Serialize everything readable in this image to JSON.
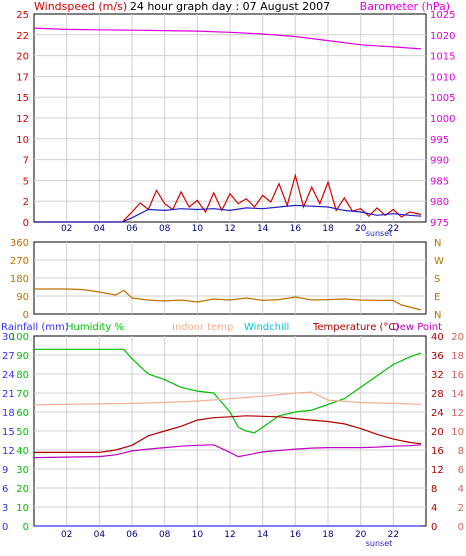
{
  "title": "24 hour graph day : 07 August 2007",
  "sunset_label": "sunset",
  "colors": {
    "windspeed": "#d40000",
    "wind_avg": "#2020c0",
    "barometer": "#e000e0",
    "wind_dir": "#c07000",
    "rainfall": "#3030ff",
    "humidity": "#00c000",
    "indoor": "#f0b090",
    "windchill": "#00c8d8",
    "temperature": "#b00000",
    "dewpoint": "#c000c0",
    "grid": "#d0d0d0",
    "frame": "#000000"
  },
  "chart_data": [
    {
      "type": "line",
      "panel": "top",
      "title": "24 hour graph day : 07 August 2007",
      "left_axis": {
        "label": "Windspeed (m/s)",
        "ticks": [
          "0",
          "2",
          "5",
          "7",
          "10",
          "12",
          "15",
          "17",
          "20",
          "22",
          "25"
        ],
        "range": [
          0,
          25
        ]
      },
      "right_axis": {
        "label": "Barometer (hPa)",
        "ticks": [
          "975",
          "980",
          "985",
          "990",
          "995",
          "1000",
          "1005",
          "1010",
          "1015",
          "1020",
          "1025"
        ],
        "range": [
          975,
          1025
        ]
      },
      "x_ticks": [
        "02",
        "04",
        "06",
        "08",
        "10",
        "12",
        "14",
        "16",
        "18",
        "20",
        "22"
      ],
      "x_range_hours": [
        0,
        24
      ],
      "annotation": "sunset",
      "series": [
        {
          "name": "Windspeed (m/s)",
          "axis": "left",
          "x": [
            0,
            5.4,
            6,
            6.5,
            7,
            7.5,
            8,
            8.5,
            9,
            9.5,
            10,
            10.5,
            11,
            11.5,
            12,
            12.5,
            13,
            13.5,
            14,
            14.5,
            15,
            15.5,
            16,
            16.5,
            17,
            17.5,
            18,
            18.5,
            19,
            19.5,
            20,
            20.5,
            21,
            21.5,
            22,
            22.5,
            23,
            23.7
          ],
          "y": [
            0,
            0,
            1.2,
            2.3,
            1.5,
            3.8,
            2.2,
            1.5,
            3.6,
            1.8,
            2.6,
            1.2,
            3.5,
            1.4,
            3.4,
            2.2,
            2.8,
            1.8,
            3.2,
            2.4,
            4.6,
            2.0,
            5.6,
            1.8,
            4.2,
            2.2,
            4.8,
            1.4,
            2.9,
            1.3,
            1.6,
            0.7,
            1.7,
            0.8,
            1.5,
            0.6,
            1.2,
            0.9
          ]
        },
        {
          "name": "Wind average",
          "axis": "left",
          "x": [
            0,
            5.4,
            6,
            7,
            8,
            9,
            10,
            11,
            12,
            13,
            14,
            15,
            16,
            17,
            18,
            19,
            20,
            21,
            22,
            23,
            23.7
          ],
          "y": [
            0,
            0,
            0.5,
            1.5,
            1.4,
            1.6,
            1.5,
            1.6,
            1.4,
            1.7,
            1.6,
            1.8,
            2.0,
            1.9,
            1.8,
            1.4,
            1.2,
            0.8,
            1.0,
            0.8,
            0.7
          ]
        },
        {
          "name": "Barometer (hPa)",
          "axis": "right",
          "x": [
            0,
            2,
            4,
            6,
            8,
            10,
            12,
            14,
            16,
            18,
            20,
            22,
            23.7
          ],
          "y": [
            1021.6,
            1021.3,
            1021.2,
            1021.1,
            1021.0,
            1020.9,
            1020.6,
            1020.2,
            1019.6,
            1018.6,
            1017.6,
            1017.1,
            1016.6
          ]
        }
      ]
    },
    {
      "type": "line",
      "panel": "middle",
      "left_axis": {
        "ticks": [
          "0",
          "90",
          "180",
          "270",
          "360"
        ],
        "range": [
          0,
          360
        ]
      },
      "right_axis": {
        "ticks": [
          "N",
          "E",
          "S",
          "W",
          "N"
        ]
      },
      "x_ticks": [
        "02",
        "04",
        "06",
        "08",
        "10",
        "12",
        "14",
        "16",
        "18",
        "20",
        "22"
      ],
      "x_range_hours": [
        0,
        24
      ],
      "series": [
        {
          "name": "Wind direction",
          "axis": "left",
          "x": [
            0,
            1,
            2,
            3,
            4,
            5,
            5.5,
            6,
            7,
            8,
            9,
            10,
            11,
            12,
            13,
            14,
            15,
            16,
            17,
            18,
            19,
            20,
            21,
            22,
            22.5,
            23,
            23.7
          ],
          "y": [
            125,
            125,
            125,
            122,
            110,
            95,
            118,
            80,
            70,
            65,
            70,
            60,
            75,
            70,
            80,
            68,
            72,
            85,
            70,
            72,
            75,
            70,
            68,
            68,
            45,
            35,
            20
          ]
        }
      ]
    },
    {
      "type": "line",
      "panel": "bottom",
      "legend": [
        "Rainfall (mm)",
        "Humidity %",
        "Indoor temp",
        "Windchill",
        "Temperature (°C)",
        "Dew Point"
      ],
      "left_axis_rain": {
        "label": "Rainfall (mm)",
        "ticks": [
          "0",
          "3",
          "6",
          "9",
          "12",
          "15",
          "18",
          "21",
          "24",
          "27",
          "30"
        ],
        "range": [
          0,
          30
        ]
      },
      "left_axis_humidity": {
        "label": "Humidity %",
        "ticks": [
          "0",
          "10",
          "20",
          "30",
          "40",
          "50",
          "60",
          "70",
          "80",
          "90",
          "100"
        ],
        "range": [
          0,
          100
        ]
      },
      "right_axis_temp_a": {
        "label": "Temperature (°C)",
        "ticks": [
          "0",
          "4",
          "8",
          "12",
          "16",
          "20",
          "24",
          "28",
          "32",
          "36",
          "40"
        ],
        "range": [
          0,
          40
        ]
      },
      "right_axis_temp_b": {
        "ticks": [
          "0",
          "2",
          "4",
          "6",
          "8",
          "10",
          "12",
          "14",
          "16",
          "18",
          "20"
        ],
        "range": [
          0,
          20
        ]
      },
      "x_ticks": [
        "02",
        "04",
        "06",
        "08",
        "10",
        "12",
        "14",
        "16",
        "18",
        "20",
        "22"
      ],
      "x_range_hours": [
        0,
        24
      ],
      "annotation": "sunset",
      "series": [
        {
          "name": "Rainfall (mm)",
          "axis": "rain",
          "x": [
            0,
            23.7
          ],
          "y": [
            0,
            0
          ]
        },
        {
          "name": "Humidity %",
          "axis": "humidity",
          "x": [
            0,
            2,
            4,
            5.5,
            6,
            7,
            8,
            9,
            10,
            11,
            11.5,
            12,
            12.5,
            13,
            13.5,
            14,
            15,
            16,
            17,
            18,
            19,
            20,
            21,
            22,
            23,
            23.7
          ],
          "y": [
            93,
            93,
            93,
            93,
            88,
            80,
            77,
            73,
            71,
            70,
            65,
            60,
            52,
            50,
            49,
            52,
            58,
            60,
            61,
            64,
            67,
            73,
            79,
            85,
            89,
            91
          ]
        },
        {
          "name": "Indoor temp",
          "axis": "temp_a",
          "x": [
            0,
            2,
            4,
            6,
            8,
            10,
            12,
            14,
            16,
            17,
            18,
            20,
            22,
            23.7
          ],
          "y": [
            25.5,
            25.6,
            25.7,
            25.8,
            26,
            26.3,
            26.8,
            27.3,
            28,
            28.2,
            26.5,
            26,
            25.8,
            25.6
          ]
        },
        {
          "name": "Temperature (°C)",
          "axis": "temp_a",
          "x": [
            0,
            2,
            4,
            5,
            6,
            7,
            8,
            9,
            10,
            11,
            12,
            13,
            14,
            15,
            16,
            17,
            18,
            19,
            20,
            21,
            22,
            23,
            23.7
          ],
          "y": [
            15.5,
            15.5,
            15.5,
            16,
            17,
            19,
            20,
            21,
            22.3,
            22.8,
            23,
            23.2,
            23.1,
            23,
            22.6,
            22.3,
            22,
            21.5,
            20.5,
            19.3,
            18.3,
            17.6,
            17.3
          ]
        },
        {
          "name": "Dew Point",
          "axis": "temp_a",
          "x": [
            0,
            2,
            4,
            5,
            6,
            7,
            8,
            9,
            10,
            11,
            11.5,
            12,
            12.5,
            13,
            14,
            15,
            16,
            17,
            18,
            19,
            20,
            21,
            22,
            23,
            23.7
          ],
          "y": [
            14.4,
            14.5,
            14.6,
            15,
            15.8,
            16.2,
            16.5,
            16.8,
            17,
            17.1,
            16.3,
            15.5,
            14.6,
            14.9,
            15.6,
            15.9,
            16.2,
            16.4,
            16.5,
            16.5,
            16.5,
            16.6,
            16.8,
            16.9,
            17.1
          ]
        }
      ]
    }
  ]
}
